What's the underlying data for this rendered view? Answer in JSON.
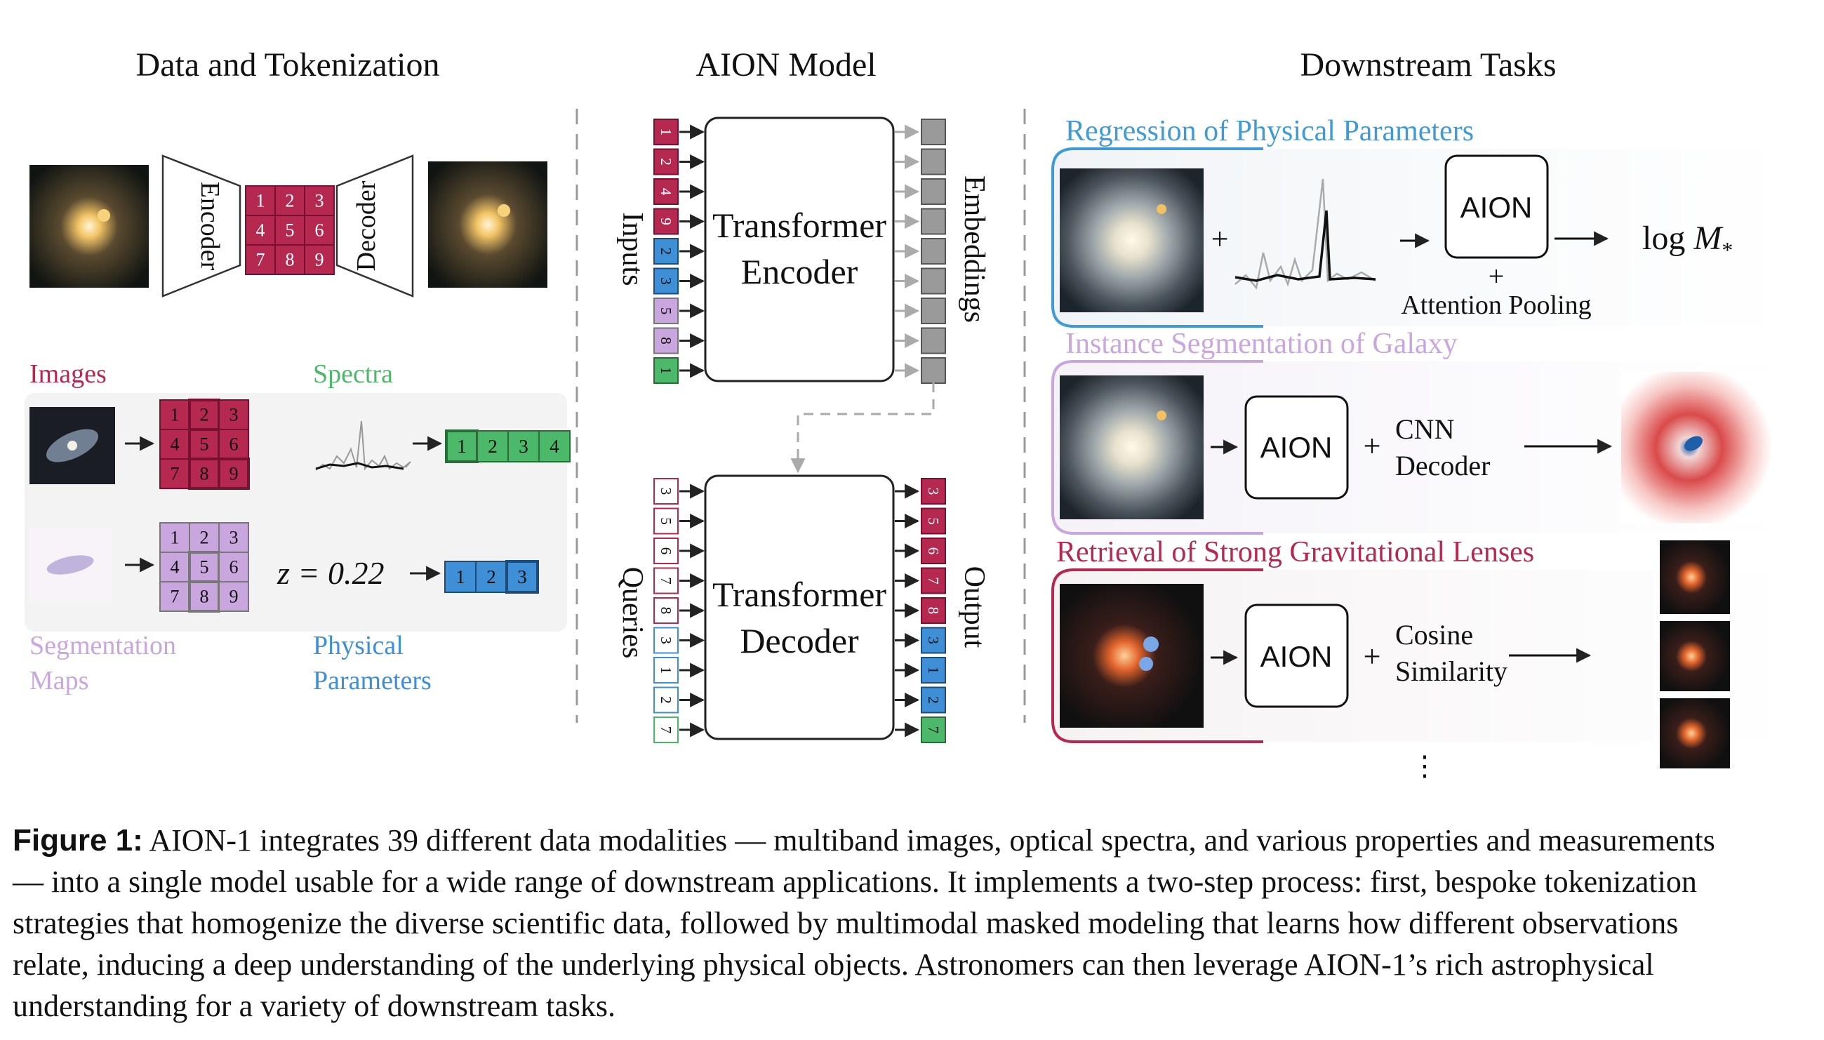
{
  "headers": {
    "left": "Data and Tokenization",
    "middle": "AION Model",
    "right": "Downstream Tasks"
  },
  "tokenization": {
    "encoder": "Encoder",
    "decoder": "Decoder",
    "grid": [
      "1",
      "2",
      "3",
      "4",
      "5",
      "6",
      "7",
      "8",
      "9"
    ]
  },
  "modalities": {
    "images": "Images",
    "spectra": "Spectra",
    "segmentation_line1": "Segmentation",
    "segmentation_line2": "Maps",
    "physical_line1": "Physical",
    "physical_line2": "Parameters",
    "spectra_tokens": [
      "1",
      "2",
      "3",
      "4"
    ],
    "redshift": "z = 0.22",
    "param_tokens": [
      "1",
      "2",
      "3"
    ]
  },
  "model": {
    "inputs": "Inputs",
    "embeddings": "Embeddings",
    "queries": "Queries",
    "output": "Output",
    "encoder_l1": "Transformer",
    "encoder_l2": "Encoder",
    "decoder_l1": "Transformer",
    "decoder_l2": "Decoder",
    "input_tokens": [
      "1",
      "2",
      "4",
      "9",
      "2",
      "3",
      "5",
      "8",
      "1"
    ],
    "query_tokens": [
      "3",
      "5",
      "6",
      "7",
      "8",
      "3",
      "1",
      "2",
      "7"
    ],
    "output_tokens": [
      "3",
      "5",
      "6",
      "7",
      "8",
      "3",
      "1",
      "2",
      "7"
    ]
  },
  "tasks": {
    "regression": {
      "title": "Regression of Physical Parameters",
      "plus": "+",
      "aion": "AION",
      "pooling_plus": "+",
      "pooling": "Attention Pooling",
      "result": "log M*"
    },
    "segmentation": {
      "title": "Instance Segmentation of Galaxy",
      "aion": "AION",
      "plus": "+",
      "head_l1": "CNN",
      "head_l2": "Decoder"
    },
    "lenses": {
      "title": "Retrieval of Strong Gravitational Lenses",
      "aion": "AION",
      "plus": "+",
      "head_l1": "Cosine",
      "head_l2": "Similarity"
    },
    "ellipsis": "⋮"
  },
  "caption": {
    "label": "Figure 1:",
    "lines": [
      "AION-1 integrates 39 different data modalities — multiband images, optical spectra, and various properties and measurements",
      "— into a single model usable for a wide range of downstream applications.  It implements a two-step process:  first, bespoke tokenization",
      "strategies that homogenize the diverse scientific data, followed by multimodal masked modeling that learns how different observations",
      "relate, inducing a deep understanding of the underlying physical objects.  Astronomers can then leverage AION-1’s rich astrophysical",
      "understanding for a variety of downstream tasks."
    ]
  },
  "colors": {
    "red": "#b5284f",
    "blue": "#3f8fd6",
    "purple": "#c9a6dd",
    "green": "#4cb96a",
    "gray": "#9a9a9a",
    "regression_title": "#3f9ad6",
    "segmentation_title": "#c9a6dd",
    "lenses_title": "#b5284f"
  }
}
